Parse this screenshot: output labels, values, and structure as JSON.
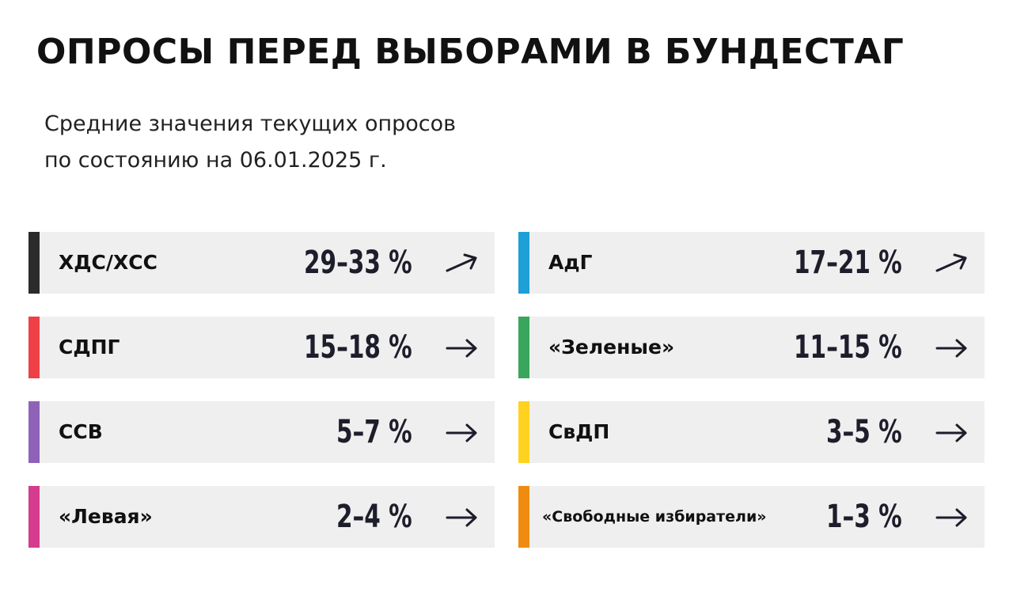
{
  "header": {
    "title": "ОПРОСЫ ПЕРЕД ВЫБОРАМИ В БУНДЕСТАГ",
    "subtitle_line1": "Средние значения текущих опросов",
    "subtitle_line2": "по состоянию на 06.01.2025 г."
  },
  "chart_data": {
    "type": "table",
    "title": "ОПРОСЫ ПЕРЕД ВЫБОРАМИ В БУНДЕСТАГ",
    "subtitle": "Средние значения текущих опросов по состоянию на 06.01.2025 г.",
    "columns": [
      "party",
      "range",
      "trend"
    ],
    "rows": [
      {
        "party": "ХДС/ХСС",
        "range": "29–33 %",
        "low": 29,
        "high": 33,
        "trend": "up-right",
        "color": "#2b2b2b"
      },
      {
        "party": "АдГ",
        "range": "17–21 %",
        "low": 17,
        "high": 21,
        "trend": "up-right",
        "color": "#1e9fd6"
      },
      {
        "party": "СДПГ",
        "range": "15–18 %",
        "low": 15,
        "high": 18,
        "trend": "right",
        "color": "#ef3f47"
      },
      {
        "party": "«Зеленые»",
        "range": "11–15 %",
        "low": 11,
        "high": 15,
        "trend": "right",
        "color": "#3aa55c"
      },
      {
        "party": "ССВ",
        "range": "5–7 %",
        "low": 5,
        "high": 7,
        "trend": "right",
        "color": "#8e62b8"
      },
      {
        "party": "СвДП",
        "range": "3–5 %",
        "low": 3,
        "high": 5,
        "trend": "right",
        "color": "#ffd21f"
      },
      {
        "party": "«Левая»",
        "range": "2–4 %",
        "low": 2,
        "high": 4,
        "trend": "right",
        "color": "#d53c8e"
      },
      {
        "party": "«Свободные избиратели»",
        "range": "1–3 %",
        "low": 1,
        "high": 3,
        "trend": "right",
        "color": "#ef8c10"
      }
    ]
  },
  "icons": {
    "arrow_right": "arrow-right-icon",
    "arrow_up_right": "arrow-up-right-icon"
  }
}
